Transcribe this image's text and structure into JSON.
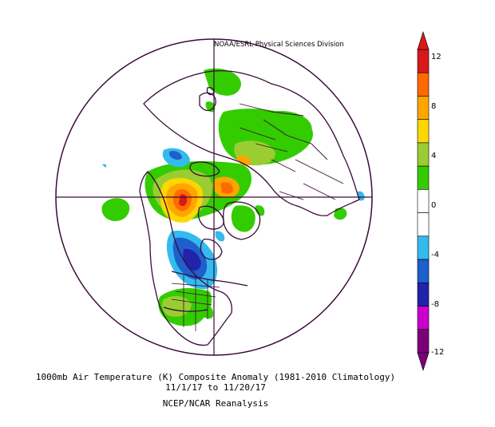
{
  "credit": "NOAA/ESRL Physical Sciences Division",
  "caption": {
    "line1": "1000mb Air Temperature (K) Composite Anomaly (1981-2010 Climatology)",
    "line2": "11/1/17  to 11/20/17",
    "line3": "NCEP/NCAR Reanalysis"
  },
  "colorbar": {
    "ticks": [
      "12",
      "8",
      "4",
      "0",
      "-4",
      "-8",
      "-12"
    ],
    "colors": [
      "#d7191c",
      "#ff6a00",
      "#ffa500",
      "#ffd700",
      "#9acd32",
      "#33cc00",
      "#ffffff",
      "#ffffff",
      "#33bbee",
      "#1f5fcc",
      "#2222aa",
      "#cc00cc",
      "#7a007a"
    ]
  },
  "map": {
    "projection": "north-polar-stereographic",
    "land_outline_color": "#3a0a3a",
    "anomaly_colors": {
      "strong_warm": "#d7191c",
      "warm": "#ff6a00",
      "mod_warm": "#ffa500",
      "mild_warm": "#ffd700",
      "weak_warm": "#9acd32",
      "slight_warm": "#33cc00",
      "slight_cold": "#33bbee",
      "cold": "#1f5fcc",
      "strong_cold": "#2222aa"
    }
  }
}
